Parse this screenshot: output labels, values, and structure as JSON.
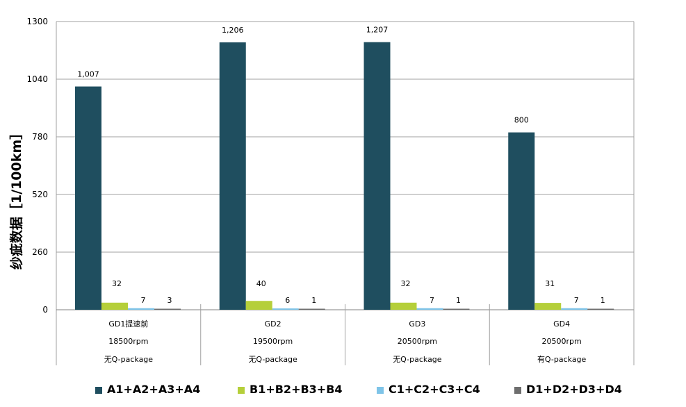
{
  "chart_data": {
    "type": "bar",
    "ylabel": "纱疵数据［1/100km］",
    "ylim": [
      0,
      1300
    ],
    "yticks": [
      0,
      260,
      520,
      780,
      1040,
      1300
    ],
    "grid": true,
    "legend_position": "bottom",
    "categories": [
      [
        "GD1提速前",
        "18500rpm",
        "无Q-package"
      ],
      [
        "GD2",
        "19500rpm",
        "无Q-package"
      ],
      [
        "GD3",
        "20500rpm",
        "无Q-package"
      ],
      [
        "GD4",
        "20500rpm",
        "有Q-package"
      ]
    ],
    "series": [
      {
        "name": "A1+A2+A3+A4",
        "color": "#1f4e5f",
        "values": [
          1007,
          1206,
          1207,
          800
        ],
        "labels": [
          "1,007",
          "1,206",
          "1,207",
          "800"
        ]
      },
      {
        "name": "B1+B2+B3+B4",
        "color": "#b5cf3a",
        "values": [
          32,
          40,
          32,
          31
        ],
        "labels": [
          "32",
          "40",
          "32",
          "31"
        ]
      },
      {
        "name": "C1+C2+C3+C4",
        "color": "#7ec4e8",
        "values": [
          7,
          6,
          7,
          7
        ],
        "labels": [
          "7",
          "6",
          "7",
          "7"
        ]
      },
      {
        "name": "D1+D2+D3+D4",
        "color": "#6e6e6e",
        "values": [
          3,
          1,
          1,
          1
        ],
        "labels": [
          "3",
          "1",
          "1",
          "1"
        ]
      }
    ]
  }
}
